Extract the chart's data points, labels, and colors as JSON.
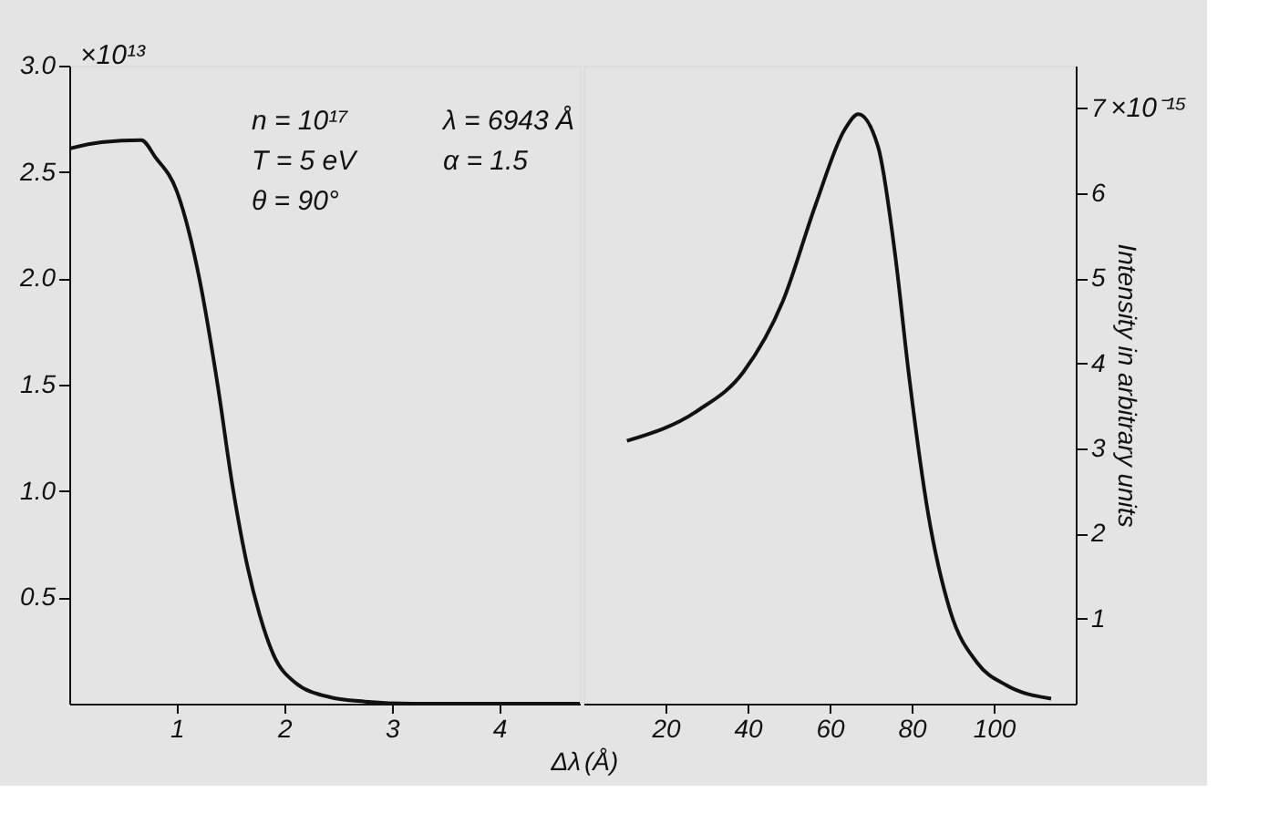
{
  "chart_data": [
    {
      "type": "line",
      "xlabel": "Δλ",
      "xlim": [
        0,
        4.75
      ],
      "xticks": [
        1,
        2,
        3,
        4
      ],
      "ylim": [
        0,
        3.0
      ],
      "yticks": [
        {
          "value": 0.5,
          "label": "0.5"
        },
        {
          "value": 1,
          "label": "1.0"
        },
        {
          "value": 1.5,
          "label": "1.5"
        },
        {
          "value": 2,
          "label": "2.0"
        },
        {
          "value": 2.5,
          "label": "2.5"
        },
        {
          "value": 3,
          "label": "3.0"
        }
      ],
      "grid": false,
      "annotations": [
        "×10¹³",
        "n = 10¹⁷",
        "T = 5 eV",
        "θ = 90°",
        "λ = 6943 Å",
        "α = 1.5"
      ],
      "series": [
        {
          "color": "#111111",
          "x": [
            0,
            0.3,
            0.67,
            0.8,
            1.0,
            1.21,
            1.38,
            1.52,
            1.66,
            1.77,
            1.9,
            2.1,
            2.43,
            2.75,
            3.2,
            4.0,
            4.75
          ],
          "values": [
            2.61,
            2.64,
            2.65,
            2.57,
            2.41,
            2.0,
            1.5,
            1.02,
            0.64,
            0.42,
            0.23,
            0.1,
            0.03,
            0.01,
            0,
            0,
            0
          ]
        }
      ]
    },
    {
      "type": "line",
      "xlabel": "(Å)",
      "xlim": [
        0,
        120
      ],
      "xticks": [
        20,
        40,
        60,
        80,
        100
      ],
      "y2lim": [
        0,
        7.5
      ],
      "y2ticks": [
        1,
        2,
        3,
        4,
        5,
        6,
        7
      ],
      "y2label": "Intensity in arbitrary units",
      "grid": false,
      "annotations": [
        "×10⁻¹⁵"
      ],
      "series": [
        {
          "color": "#111111",
          "axis": "y2",
          "x": [
            10.6,
            28,
            39,
            48.6,
            56.7,
            63.7,
            67,
            71.8,
            76,
            79.2,
            84,
            89.4,
            96,
            103,
            114
          ],
          "values": [
            3.09,
            3.45,
            3.9,
            4.73,
            5.88,
            6.75,
            6.93,
            6.55,
            5.27,
            3.92,
            2.24,
            1.09,
            0.48,
            0.22,
            0.06
          ]
        }
      ]
    }
  ]
}
